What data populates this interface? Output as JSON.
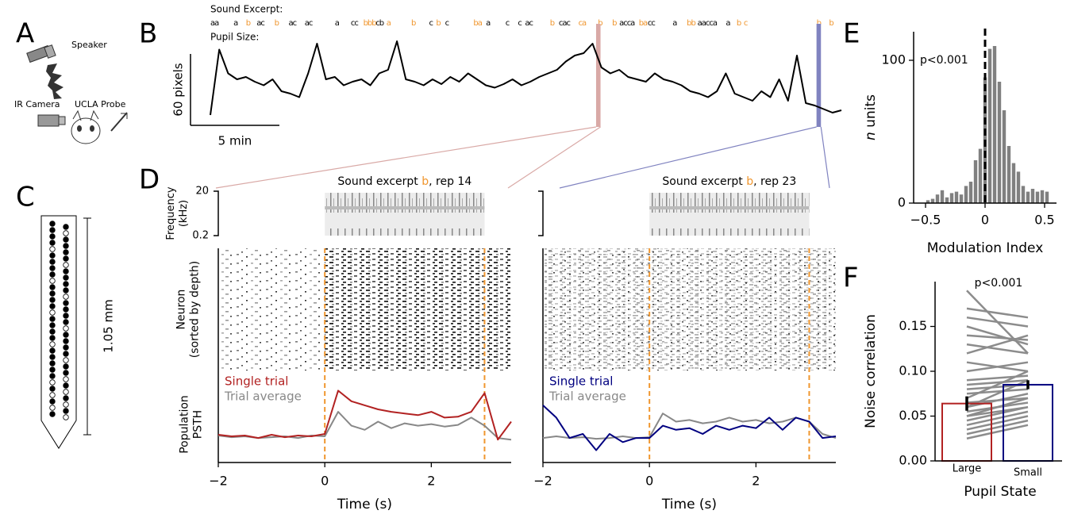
{
  "diagram": {
    "panel_labels": [
      "A",
      "B",
      "C",
      "D",
      "E",
      "F"
    ],
    "setup_labels": [
      "Speaker",
      "IR Camera",
      "UCLA Probe"
    ],
    "probe_length": "1.05 mm"
  },
  "chart_data": [
    {
      "type": "line",
      "annotations": [
        "Sound Excerpt:",
        "Pupil Size:"
      ],
      "tokens": [
        {
          "text": "aa",
          "x": 0.0,
          "color": "#000000"
        },
        {
          "text": "a",
          "x": 1.3,
          "color": "#000000"
        },
        {
          "text": "b",
          "x": 2.0,
          "color": "#f0962e"
        },
        {
          "text": "ac",
          "x": 2.6,
          "color": "#000000"
        },
        {
          "text": "b",
          "x": 3.6,
          "color": "#f0962e"
        },
        {
          "text": "ac",
          "x": 4.4,
          "color": "#000000"
        },
        {
          "text": "ac",
          "x": 5.3,
          "color": "#000000"
        },
        {
          "text": "a",
          "x": 7.0,
          "color": "#000000"
        },
        {
          "text": "cc",
          "x": 7.9,
          "color": "#000000"
        },
        {
          "text": "bbb",
          "x": 8.6,
          "color": "#f0962e"
        },
        {
          "text": "cb",
          "x": 9.3,
          "color": "#000000"
        },
        {
          "text": "a",
          "x": 9.9,
          "color": "#f0962e"
        },
        {
          "text": "b",
          "x": 11.3,
          "color": "#f0962e"
        },
        {
          "text": "c",
          "x": 12.3,
          "color": "#000000"
        },
        {
          "text": "b",
          "x": 12.7,
          "color": "#f0962e"
        },
        {
          "text": "c",
          "x": 13.2,
          "color": "#000000"
        },
        {
          "text": "ba",
          "x": 14.8,
          "color": "#f0962e"
        },
        {
          "text": "a",
          "x": 15.5,
          "color": "#000000"
        },
        {
          "text": "c",
          "x": 16.6,
          "color": "#000000"
        },
        {
          "text": "c",
          "x": 17.3,
          "color": "#000000"
        },
        {
          "text": "ac",
          "x": 17.7,
          "color": "#000000"
        },
        {
          "text": "b",
          "x": 19.1,
          "color": "#f0962e"
        },
        {
          "text": "cac",
          "x": 19.6,
          "color": "#000000"
        },
        {
          "text": "ca",
          "x": 20.7,
          "color": "#f0962e"
        },
        {
          "text": "b",
          "x": 21.8,
          "color": "#f0962e"
        },
        {
          "text": "b",
          "x": 22.6,
          "color": "#f0962e"
        },
        {
          "text": "acca",
          "x": 23.0,
          "color": "#000000"
        },
        {
          "text": "ba",
          "x": 24.1,
          "color": "#f0962e"
        },
        {
          "text": "cc",
          "x": 24.6,
          "color": "#000000"
        },
        {
          "text": "a",
          "x": 26.0,
          "color": "#000000"
        },
        {
          "text": "bb",
          "x": 26.8,
          "color": "#f0962e"
        },
        {
          "text": "aacca",
          "x": 27.4,
          "color": "#000000"
        },
        {
          "text": "a",
          "x": 29.0,
          "color": "#000000"
        },
        {
          "text": "b",
          "x": 29.6,
          "color": "#f0962e"
        },
        {
          "text": "c",
          "x": 30.0,
          "color": "#f0962e"
        },
        {
          "text": "b",
          "x": 34.1,
          "color": "#f0962e"
        },
        {
          "text": "b",
          "x": 34.8,
          "color": "#f0962e"
        }
      ],
      "x": [
        0,
        0.5,
        1,
        1.5,
        2,
        2.5,
        3,
        3.5,
        4,
        4.5,
        5,
        5.5,
        6,
        6.5,
        7,
        7.5,
        8,
        8.5,
        9,
        9.5,
        10,
        10.5,
        11,
        11.5,
        12,
        12.5,
        13,
        13.5,
        14,
        14.5,
        15,
        15.5,
        16,
        16.5,
        17,
        17.5,
        18,
        18.5,
        19,
        19.5,
        20,
        20.5,
        21,
        21.5,
        22,
        22.5,
        23,
        23.5,
        24,
        24.5,
        25,
        25.5,
        26,
        26.5,
        27,
        27.5,
        28,
        28.5,
        29,
        29.5,
        30,
        30.5,
        31,
        31.5,
        32,
        32.5,
        33,
        33.5,
        34,
        34.5,
        35,
        35.5
      ],
      "series": [
        {
          "color": "#000000",
          "values": [
            10,
            65,
            45,
            40,
            42,
            38,
            35,
            40,
            30,
            28,
            25,
            45,
            70,
            40,
            42,
            35,
            38,
            40,
            35,
            45,
            48,
            72,
            40,
            38,
            35,
            40,
            36,
            42,
            38,
            45,
            40,
            35,
            33,
            36,
            40,
            35,
            38,
            42,
            45,
            48,
            55,
            60,
            62,
            70,
            50,
            45,
            48,
            42,
            40,
            38,
            45,
            40,
            38,
            35,
            30,
            28,
            25,
            30,
            45,
            28,
            25,
            22,
            30,
            25,
            40,
            22,
            60,
            20,
            18,
            15,
            12,
            14
          ]
        }
      ],
      "xlim": [
        0,
        35.5
      ],
      "ylim": [
        0,
        80
      ],
      "scale_bars": [
        {
          "axis": "y",
          "value": 60,
          "label": "60 pixels"
        },
        {
          "axis": "x",
          "value": 5,
          "label": "5 min"
        }
      ],
      "highlights": [
        {
          "x": [
            21.7,
            21.95
          ],
          "color": "#d9a9a6"
        },
        {
          "x": [
            34.1,
            34.35
          ],
          "color": "#8083c0"
        }
      ]
    },
    {
      "type": "line",
      "title": [
        "Sound excerpt ",
        "b",
        ", rep 14"
      ],
      "title_colors": [
        "#000000",
        "#f0962e",
        "#000000"
      ],
      "freq_ticks": [
        20,
        0.2
      ],
      "freq_label": [
        "Frequency",
        "(kHz)"
      ],
      "raster_label": [
        "Neuron",
        "(sorted  by depth)"
      ],
      "psth_label": [
        "Population",
        "PSTH"
      ],
      "xlabel": "Time (s)",
      "xlim": [
        -2,
        3.5
      ],
      "xticks": [
        {
          "value": -2,
          "label": "−2"
        },
        0,
        2
      ],
      "ylim": [
        0,
        1
      ],
      "vlines": [
        0,
        3
      ],
      "vline_color": "#f0962e",
      "x": [
        -2,
        -1.75,
        -1.5,
        -1.25,
        -1,
        -0.75,
        -0.5,
        -0.25,
        0,
        0.25,
        0.5,
        0.75,
        1,
        1.25,
        1.5,
        1.75,
        2,
        2.25,
        2.5,
        2.75,
        3,
        3.25,
        3.5
      ],
      "series": [
        {
          "name": "Single trial",
          "color": "#b22222",
          "values": [
            0.34,
            0.32,
            0.33,
            0.3,
            0.34,
            0.31,
            0.33,
            0.32,
            0.35,
            0.88,
            0.75,
            0.7,
            0.65,
            0.62,
            0.6,
            0.58,
            0.62,
            0.55,
            0.56,
            0.62,
            0.85,
            0.28,
            0.5
          ]
        },
        {
          "name": "Trial average",
          "color": "#888888",
          "values": [
            0.33,
            0.31,
            0.32,
            0.3,
            0.31,
            0.32,
            0.3,
            0.33,
            0.32,
            0.62,
            0.45,
            0.4,
            0.5,
            0.42,
            0.48,
            0.45,
            0.47,
            0.44,
            0.46,
            0.55,
            0.45,
            0.3,
            0.28
          ]
        }
      ]
    },
    {
      "type": "line",
      "title": [
        "Sound excerpt ",
        "b",
        ", rep 23"
      ],
      "title_colors": [
        "#000000",
        "#f0962e",
        "#000000"
      ],
      "xlabel": "Time (s)",
      "xlim": [
        -2,
        3.5
      ],
      "xticks": [
        {
          "value": -2,
          "label": "−2"
        },
        0,
        2
      ],
      "ylim": [
        0,
        1
      ],
      "vlines": [
        0,
        3
      ],
      "vline_color": "#f0962e",
      "x": [
        -2,
        -1.75,
        -1.5,
        -1.25,
        -1,
        -0.75,
        -0.5,
        -0.25,
        0,
        0.25,
        0.5,
        0.75,
        1,
        1.25,
        1.5,
        1.75,
        2,
        2.25,
        2.5,
        2.75,
        3,
        3.25,
        3.5
      ],
      "series": [
        {
          "name": "Single trial",
          "color": "#000080",
          "values": [
            0.7,
            0.55,
            0.3,
            0.35,
            0.15,
            0.35,
            0.25,
            0.3,
            0.3,
            0.45,
            0.4,
            0.42,
            0.35,
            0.45,
            0.4,
            0.45,
            0.42,
            0.55,
            0.4,
            0.55,
            0.5,
            0.3,
            0.32
          ]
        },
        {
          "name": "Trial average",
          "color": "#888888",
          "values": [
            0.3,
            0.32,
            0.3,
            0.31,
            0.29,
            0.3,
            0.32,
            0.3,
            0.31,
            0.6,
            0.5,
            0.52,
            0.48,
            0.5,
            0.55,
            0.5,
            0.52,
            0.48,
            0.5,
            0.55,
            0.5,
            0.35,
            0.3
          ]
        }
      ]
    },
    {
      "type": "histogram",
      "bins": [
        -0.5,
        -0.46,
        -0.42,
        -0.38,
        -0.34,
        -0.3,
        -0.26,
        -0.22,
        -0.18,
        -0.14,
        -0.1,
        -0.06,
        -0.02,
        0.02,
        0.06,
        0.1,
        0.14,
        0.18,
        0.22,
        0.26,
        0.3,
        0.34,
        0.38,
        0.42,
        0.46,
        0.5,
        0.54
      ],
      "values": [
        2,
        3,
        6,
        9,
        4,
        7,
        8,
        6,
        12,
        15,
        30,
        38,
        88,
        108,
        110,
        85,
        65,
        40,
        28,
        22,
        12,
        8,
        10,
        8,
        9,
        8
      ],
      "color": "#808080",
      "xlim": [
        -0.6,
        0.6
      ],
      "ylim": [
        0,
        120
      ],
      "xticks": [
        {
          "value": -0.5,
          "label": "−0.5"
        },
        0,
        0.5
      ],
      "yticks": [
        0,
        100
      ],
      "vline": 0,
      "annotation": "p<0.001",
      "xlabel": "Modulation Index",
      "ylabel": [
        "n",
        " units"
      ]
    },
    {
      "type": "bar",
      "categories": [
        "Large",
        "Small"
      ],
      "values": [
        0.064,
        0.085
      ],
      "errors": [
        0.008,
        0.005
      ],
      "colors": [
        "#b22222",
        "#000080"
      ],
      "paired_values": [
        [
          0.19,
          0.17,
          0.16,
          0.15,
          0.14,
          0.13,
          0.12,
          0.11,
          0.1,
          0.09,
          0.085,
          0.08,
          0.075,
          0.07,
          0.065,
          0.06,
          0.055,
          0.05,
          0.045,
          0.04,
          0.035,
          0.03,
          0.025,
          0.06,
          0.05
        ],
        [
          0.12,
          0.16,
          0.15,
          0.13,
          0.135,
          0.12,
          0.14,
          0.1,
          0.11,
          0.095,
          0.09,
          0.085,
          0.08,
          0.1,
          0.07,
          0.075,
          0.065,
          0.06,
          0.06,
          0.055,
          0.05,
          0.045,
          0.04,
          0.09,
          0.07
        ]
      ],
      "paired_color": "#8c8c8c",
      "ylim": [
        0,
        0.2
      ],
      "yticks": [
        {
          "value": 0,
          "label": "0.00"
        },
        {
          "value": 0.05,
          "label": "0.05"
        },
        {
          "value": 0.1,
          "label": "0.10"
        },
        {
          "value": 0.15,
          "label": "0.15"
        }
      ],
      "annotation": "p<0.001",
      "xlabel": "Pupil State",
      "ylabel": "Noise correlation"
    }
  ]
}
